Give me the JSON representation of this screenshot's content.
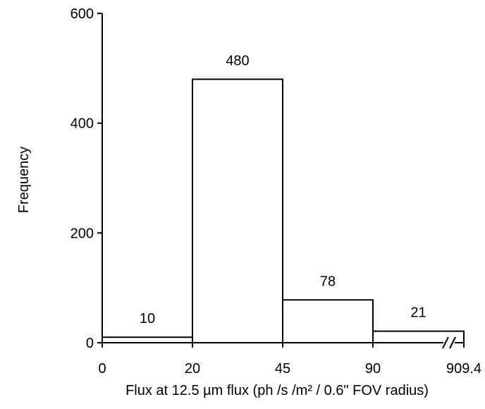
{
  "chart_data": {
    "type": "bar",
    "bin_edge_labels": [
      "0",
      "20",
      "45",
      "90",
      "909.4"
    ],
    "bins": [
      {
        "from": 0,
        "to": 20,
        "value": 10,
        "label": "10"
      },
      {
        "from": 20,
        "to": 45,
        "value": 480,
        "label": "480"
      },
      {
        "from": 45,
        "to": 90,
        "value": 78,
        "label": "78"
      },
      {
        "from": 90,
        "to": 909.4,
        "value": 21,
        "label": "21"
      }
    ],
    "x_axis_break": true,
    "xlabel": "Flux at 12.5 µm flux (ph /s /m² / 0.6\" FOV radius)",
    "ylabel": "Frequency",
    "ylim": [
      0,
      600
    ],
    "yticks": [
      0,
      200,
      400,
      600
    ],
    "grid": false
  }
}
